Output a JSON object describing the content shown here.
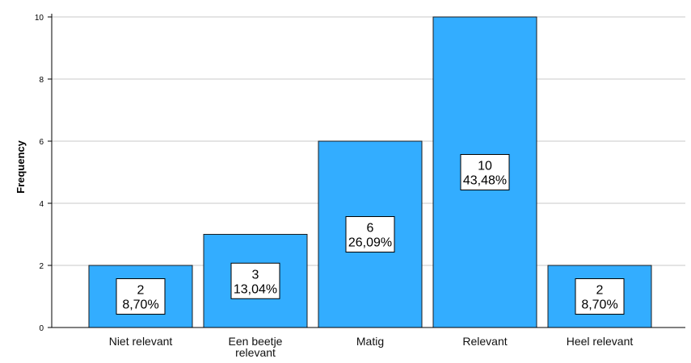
{
  "chart_data": {
    "type": "bar",
    "title": "",
    "xlabel": "",
    "ylabel": "Frequency",
    "categories": [
      [
        "Niet relevant"
      ],
      [
        "Een beetje",
        "relevant"
      ],
      [
        "Matig"
      ],
      [
        "Relevant"
      ],
      [
        "Heel relevant"
      ]
    ],
    "values": [
      2,
      3,
      6,
      10,
      2
    ],
    "percent_labels": [
      "8,70%",
      "13,04%",
      "26,09%",
      "43,48%",
      "8,70%"
    ],
    "count_labels": [
      "2",
      "3",
      "6",
      "10",
      "2"
    ],
    "ylim": [
      0,
      10
    ],
    "yticks": [
      "0",
      "2",
      "4",
      "6",
      "8",
      "10"
    ],
    "grid": true,
    "bar_color": "#33adff",
    "bar_border_color": "#1c1c1c"
  }
}
